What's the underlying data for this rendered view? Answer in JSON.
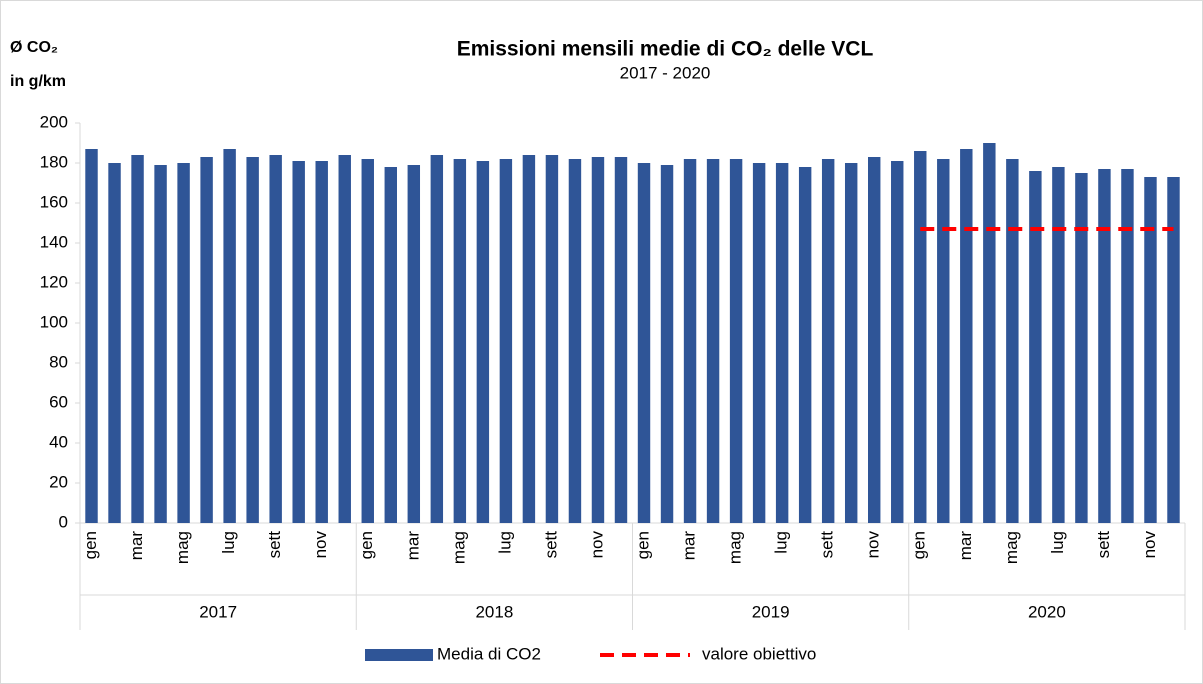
{
  "chart_data": {
    "type": "bar",
    "title": "Emissioni mensili medie di CO₂ delle VCL",
    "subtitle": "2017 - 2020",
    "y_label": [
      "Ø CO₂",
      "in g/km"
    ],
    "categories": [
      "gen",
      null,
      "mar",
      null,
      "mag",
      null,
      "lug",
      null,
      "sett",
      null,
      "nov",
      null,
      "gen",
      null,
      "mar",
      null,
      "mag",
      null,
      "lug",
      null,
      "sett",
      null,
      "nov",
      null,
      "gen",
      null,
      "mar",
      null,
      "mag",
      null,
      "lug",
      null,
      "sett",
      null,
      "nov",
      null,
      "gen",
      null,
      "mar",
      null,
      "mag",
      null,
      "lug",
      null,
      "sett",
      null,
      "nov",
      null
    ],
    "years": [
      "2017",
      "2018",
      "2019",
      "2020"
    ],
    "series": [
      {
        "name": "Media di CO2",
        "type": "bar",
        "color": "#2f5597",
        "values": [
          187,
          180,
          184,
          179,
          180,
          183,
          187,
          183,
          184,
          181,
          181,
          184,
          182,
          178,
          179,
          184,
          182,
          181,
          182,
          184,
          184,
          182,
          183,
          183,
          180,
          179,
          182,
          182,
          182,
          180,
          180,
          178,
          182,
          180,
          183,
          181,
          186,
          182,
          187,
          190,
          182,
          176,
          178,
          175,
          177,
          177,
          173,
          173
        ]
      },
      {
        "name": "valore obiettivo",
        "type": "line",
        "color": "#ff0000",
        "dashed": true,
        "values": [
          null,
          null,
          null,
          null,
          null,
          null,
          null,
          null,
          null,
          null,
          null,
          null,
          null,
          null,
          null,
          null,
          null,
          null,
          null,
          null,
          null,
          null,
          null,
          null,
          null,
          null,
          null,
          null,
          null,
          null,
          null,
          null,
          null,
          null,
          null,
          null,
          147,
          147,
          147,
          147,
          147,
          147,
          147,
          147,
          147,
          147,
          147,
          147
        ]
      }
    ],
    "ylim": [
      0,
      200
    ],
    "yticks": [
      0,
      20,
      40,
      60,
      80,
      100,
      120,
      140,
      160,
      180,
      200
    ],
    "legend": "bottom"
  }
}
